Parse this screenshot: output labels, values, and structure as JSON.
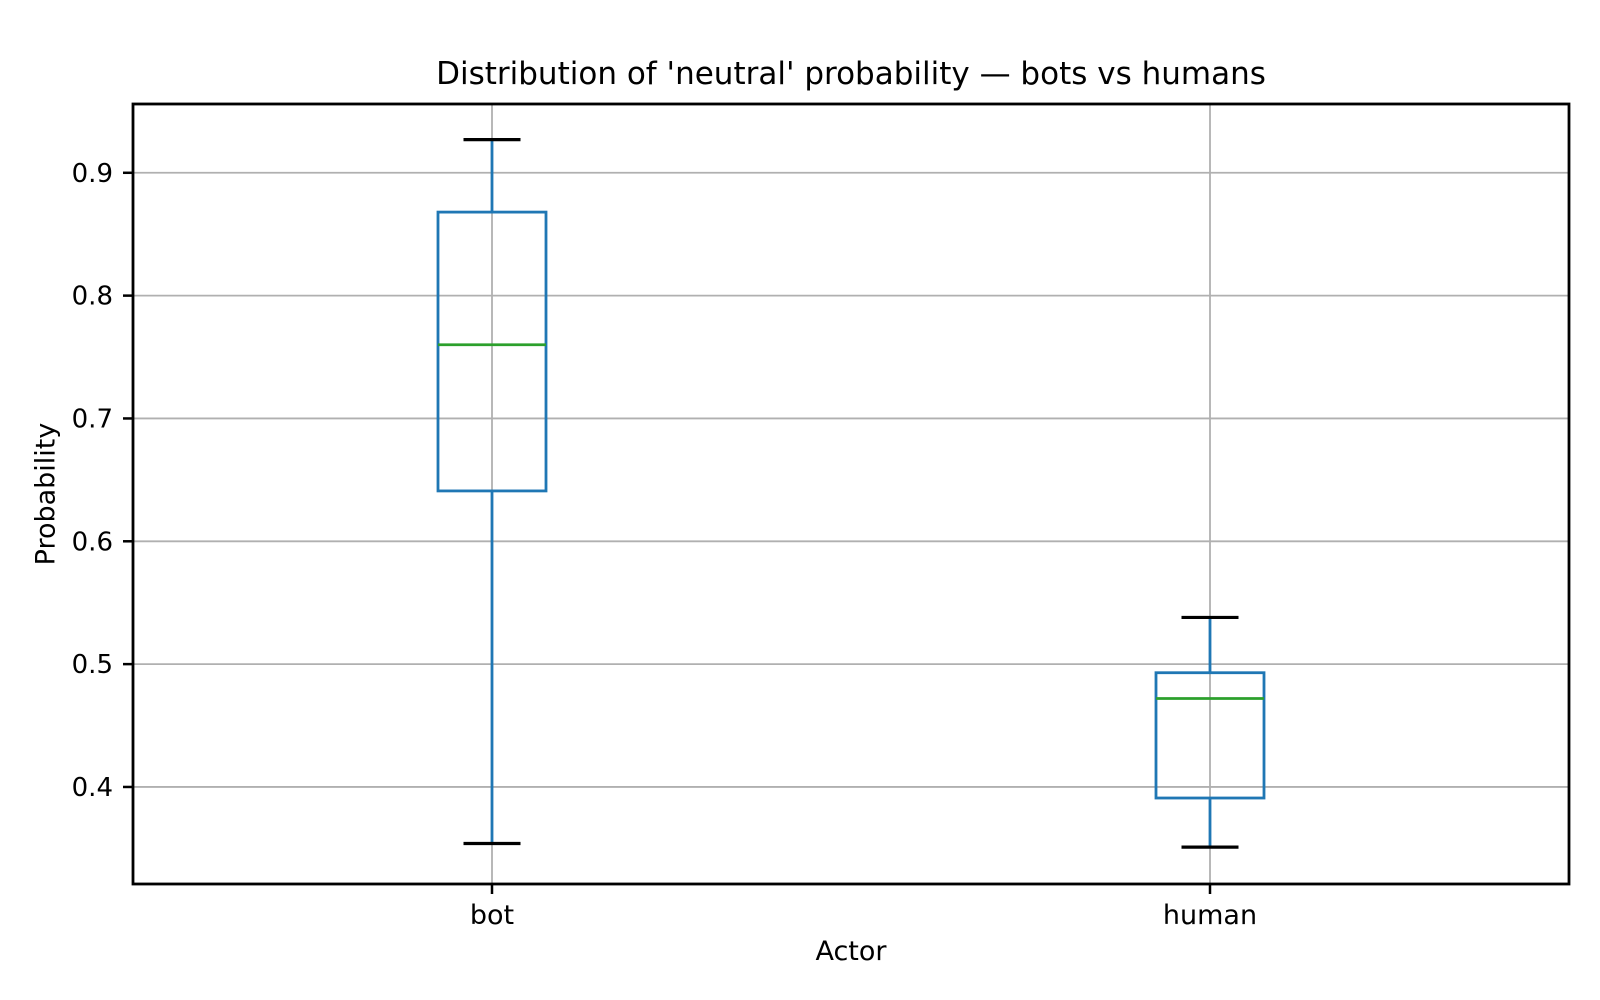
{
  "chart_data": {
    "type": "box",
    "title": "Distribution of 'neutral' probability — bots vs humans",
    "xlabel": "Actor",
    "ylabel": "Probability",
    "categories": [
      "bot",
      "human"
    ],
    "series": [
      {
        "name": "bot",
        "whisker_low": 0.354,
        "q1": 0.641,
        "median": 0.76,
        "q3": 0.868,
        "whisker_high": 0.927
      },
      {
        "name": "human",
        "whisker_low": 0.351,
        "q1": 0.391,
        "median": 0.472,
        "q3": 0.493,
        "whisker_high": 0.538
      }
    ],
    "yticks": [
      0.4,
      0.5,
      0.6,
      0.7,
      0.8,
      0.9
    ],
    "ylim": [
      0.321,
      0.956
    ],
    "grid": true,
    "legend": "none",
    "colors": {
      "box": "#1f77b4",
      "whisker": "#1f77b4",
      "median": "#2ca02c",
      "cap": "#000000",
      "grid": "#b0b0b0",
      "spine": "#000000",
      "text": "#000000",
      "background": "#ffffff"
    }
  }
}
